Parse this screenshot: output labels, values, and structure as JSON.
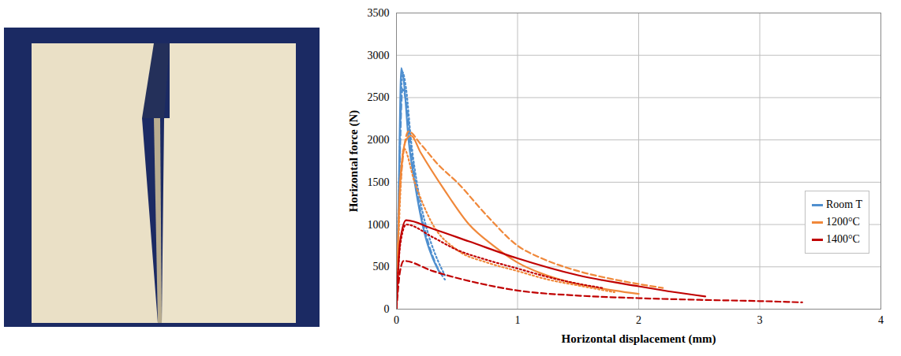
{
  "chart_data": {
    "type": "line",
    "xlabel": "Horizontal displacement (mm)",
    "ylabel": "Horizontal force (N)",
    "xlim": [
      0,
      4
    ],
    "xticks": [
      0,
      1,
      2,
      3,
      4
    ],
    "ylim": [
      0,
      3500
    ],
    "yticks": [
      0,
      500,
      1000,
      1500,
      2000,
      2500,
      3000,
      3500
    ],
    "grid": true,
    "legend": "right",
    "series": [
      {
        "name": "Room T",
        "color": "#4f8fcf",
        "line_style": "solid",
        "x": [
          0,
          0.02,
          0.04,
          0.06,
          0.1,
          0.15,
          0.2,
          0.25,
          0.3,
          0.35
        ],
        "values": [
          0,
          1500,
          2850,
          2700,
          2000,
          1500,
          1100,
          800,
          600,
          450
        ]
      },
      {
        "name": "Room T",
        "color": "#4f8fcf",
        "line_style": "dotted",
        "x": [
          0,
          0.02,
          0.05,
          0.08,
          0.12,
          0.18,
          0.25,
          0.32,
          0.4
        ],
        "values": [
          0,
          1400,
          2800,
          2600,
          2000,
          1400,
          950,
          650,
          400
        ]
      },
      {
        "name": "Room T",
        "color": "#4f8fcf",
        "line_style": "dashed",
        "x": [
          0,
          0.02,
          0.05,
          0.08,
          0.12,
          0.18,
          0.25,
          0.32,
          0.4
        ],
        "values": [
          0,
          1300,
          2600,
          2450,
          1900,
          1300,
          850,
          550,
          350
        ]
      },
      {
        "name": "1200°C",
        "color": "#f0883a",
        "line_style": "solid",
        "x": [
          0,
          0.03,
          0.08,
          0.12,
          0.2,
          0.4,
          0.6,
          0.8,
          1.0,
          1.2,
          1.4,
          1.6,
          1.8,
          2.0
        ],
        "values": [
          0,
          1500,
          2000,
          2050,
          1850,
          1400,
          1000,
          750,
          550,
          420,
          330,
          270,
          220,
          180
        ]
      },
      {
        "name": "1200°C",
        "color": "#f0883a",
        "line_style": "dashed",
        "x": [
          0,
          0.03,
          0.1,
          0.2,
          0.35,
          0.5,
          0.75,
          1.0,
          1.2,
          1.5,
          1.8,
          2.2
        ],
        "values": [
          0,
          1400,
          2100,
          1950,
          1700,
          1500,
          1100,
          750,
          600,
          450,
          350,
          250
        ]
      },
      {
        "name": "1200°C",
        "color": "#f0883a",
        "line_style": "dotted",
        "x": [
          0,
          0.03,
          0.06,
          0.15,
          0.3,
          0.5,
          0.75,
          1.0,
          1.25,
          1.5,
          1.8
        ],
        "values": [
          0,
          1300,
          1900,
          1500,
          1000,
          700,
          550,
          450,
          350,
          280,
          200
        ]
      },
      {
        "name": "1400°C",
        "color": "#c00000",
        "line_style": "solid",
        "x": [
          0,
          0.03,
          0.08,
          0.3,
          0.6,
          1.0,
          1.5,
          2.0,
          2.3,
          2.55
        ],
        "values": [
          0,
          800,
          1050,
          950,
          800,
          600,
          400,
          270,
          200,
          150
        ]
      },
      {
        "name": "1400°C",
        "color": "#c00000",
        "line_style": "dotted",
        "x": [
          0,
          0.03,
          0.08,
          0.3,
          0.5,
          0.75,
          1.0,
          1.25,
          1.5,
          1.7
        ],
        "values": [
          0,
          750,
          1000,
          850,
          700,
          580,
          480,
          380,
          300,
          250
        ]
      },
      {
        "name": "1400°C",
        "color": "#c00000",
        "line_style": "dashed",
        "x": [
          0,
          0.03,
          0.06,
          0.3,
          0.7,
          1.0,
          1.5,
          2.0,
          2.5,
          3.0,
          3.35
        ],
        "values": [
          0,
          450,
          570,
          450,
          300,
          220,
          160,
          130,
          110,
          95,
          80
        ]
      }
    ]
  }
}
